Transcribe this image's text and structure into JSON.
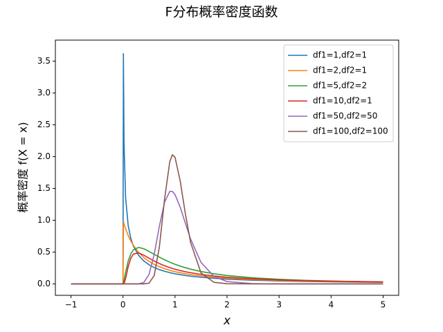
{
  "chart_data": {
    "type": "line",
    "title": "F分布概率密度函数",
    "xlabel": "x",
    "ylabel": "概率密度 f(X = x)",
    "x": [
      -1,
      0,
      0.0076,
      0.02,
      0.05,
      0.1,
      0.15,
      0.2,
      0.3,
      0.4,
      0.5,
      0.6,
      0.7,
      0.8,
      0.9,
      0.95,
      1,
      1.1,
      1.2,
      1.3,
      1.5,
      1.75,
      2,
      2.5,
      3,
      3.5,
      4,
      4.5,
      5
    ],
    "series": [
      {
        "name": "df1=1,df2=1",
        "color": "#1f77b4",
        "values": [
          0,
          0,
          3.624,
          2.207,
          1.356,
          0.915,
          0.715,
          0.593,
          0.447,
          0.36,
          0.3,
          0.257,
          0.224,
          0.198,
          0.177,
          0.167,
          0.159,
          0.145,
          0.132,
          0.121,
          0.104,
          0.0875,
          0.075,
          0.0575,
          0.0459,
          0.0378,
          0.0318,
          0.0273,
          0.0237
        ]
      },
      {
        "name": "df1=2,df2=1",
        "color": "#ff7f0e",
        "values": [
          0,
          0,
          0.978,
          0.943,
          0.867,
          0.761,
          0.675,
          0.604,
          0.494,
          0.414,
          0.354,
          0.306,
          0.269,
          0.239,
          0.213,
          0.202,
          0.192,
          0.175,
          0.16,
          0.146,
          0.125,
          0.105,
          0.0894,
          0.068,
          0.054,
          0.0442,
          0.037,
          0.0316,
          0.0274
        ]
      },
      {
        "name": "df1=5,df2=2",
        "color": "#2ca02c",
        "values": [
          0,
          0,
          0.0153,
          0.0589,
          0.183,
          0.358,
          0.471,
          0.535,
          0.573,
          0.552,
          0.511,
          0.465,
          0.42,
          0.378,
          0.341,
          0.324,
          0.308,
          0.279,
          0.254,
          0.231,
          0.194,
          0.159,
          0.132,
          0.0953,
          0.0718,
          0.056,
          0.0448,
          0.0367,
          0.0305
        ]
      },
      {
        "name": "df1=10,df2=1",
        "color": "#d62728",
        "values": [
          0,
          0,
          0,
          0.0072,
          0.0827,
          0.272,
          0.403,
          0.468,
          0.487,
          0.451,
          0.404,
          0.359,
          0.319,
          0.285,
          0.255,
          0.242,
          0.23,
          0.209,
          0.191,
          0.175,
          0.1485,
          0.1238,
          0.1052,
          0.0793,
          0.0625,
          0.0509,
          0.0425,
          0.0361,
          0.0312
        ]
      },
      {
        "name": "df1=50,df2=50",
        "color": "#9467bd",
        "values": [
          0,
          0,
          0,
          0,
          0,
          0,
          0,
          0,
          0.0009,
          0.022,
          0.148,
          0.466,
          0.909,
          1.286,
          1.455,
          1.453,
          1.403,
          1.205,
          0.95,
          0.703,
          0.337,
          0.116,
          0.037,
          0.0035,
          0,
          0,
          0,
          0,
          0
        ]
      },
      {
        "name": "df1=100,df2=100",
        "color": "#8c564b",
        "values": [
          0,
          0,
          0,
          0,
          0,
          0,
          0,
          0,
          0,
          0.0002,
          0.011,
          0.132,
          0.585,
          1.337,
          1.925,
          2.027,
          1.99,
          1.615,
          1.095,
          0.649,
          0.172,
          0.024,
          0.003,
          0,
          0,
          0,
          0,
          0,
          0
        ]
      }
    ],
    "xlim": [
      -1.3,
      5.3
    ],
    "ylim": [
      -0.18,
      3.83
    ],
    "xticks": [
      {
        "value": -1,
        "label": "−1"
      },
      0,
      1,
      2,
      3,
      4,
      5
    ],
    "yticks": [
      {
        "value": 0,
        "label": "0.0"
      },
      {
        "value": 0.5,
        "label": "0.5"
      },
      {
        "value": 1,
        "label": "1.0"
      },
      {
        "value": 1.5,
        "label": "1.5"
      },
      {
        "value": 2,
        "label": "2.0"
      },
      {
        "value": 2.5,
        "label": "2.5"
      },
      {
        "value": 3,
        "label": "3.0"
      },
      {
        "value": 3.5,
        "label": "3.5"
      }
    ],
    "legend": "upper right"
  }
}
